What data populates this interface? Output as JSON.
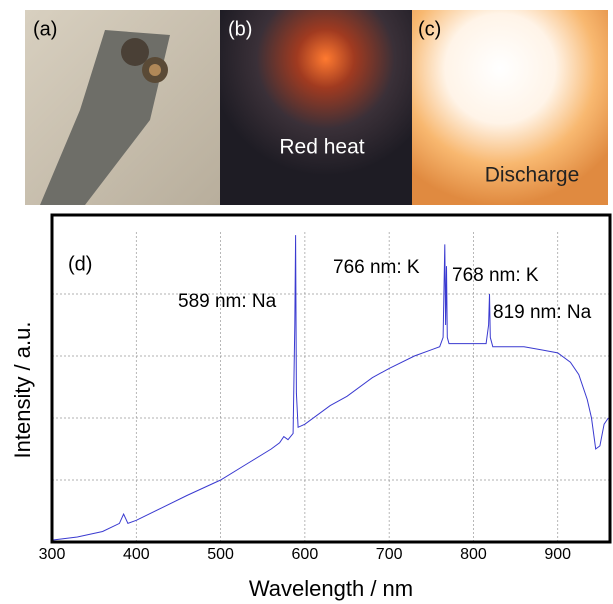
{
  "photos": [
    {
      "label": "(a)"
    },
    {
      "label": "(b)",
      "caption": "Red heat"
    },
    {
      "label": "(c)",
      "caption": "Discharge"
    }
  ],
  "chart_data": {
    "type": "line",
    "panel_label": "(d)",
    "xlabel": "Wavelength / nm",
    "ylabel": "Intensity / a.u.",
    "xlim": [
      300,
      962
    ],
    "xticks": [
      300,
      400,
      500,
      600,
      700,
      800,
      900
    ],
    "ylim": [
      0,
      5
    ],
    "yticks": [
      1,
      2,
      3,
      4
    ],
    "ytick_labels": false,
    "grid": true,
    "annotations": [
      {
        "text": "589 nm: Na",
        "x": 589
      },
      {
        "text": "766 nm: K",
        "x": 766
      },
      {
        "text": "768 nm: K",
        "x": 768
      },
      {
        "text": "819 nm: Na",
        "x": 819
      }
    ],
    "series": [
      {
        "color": "#3a3ad0",
        "x": [
          300,
          330,
          360,
          380,
          385,
          390,
          400,
          430,
          460,
          500,
          530,
          560,
          570,
          575,
          580,
          586,
          588,
          589,
          590,
          592,
          600,
          630,
          650,
          680,
          700,
          730,
          750,
          760,
          764,
          766,
          767,
          768,
          769,
          771,
          780,
          800,
          815,
          818,
          819,
          820,
          823,
          840,
          860,
          880,
          900,
          915,
          925,
          935,
          940,
          945,
          950,
          955,
          960
        ],
        "values": [
          0.03,
          0.08,
          0.17,
          0.3,
          0.45,
          0.3,
          0.35,
          0.55,
          0.75,
          1.0,
          1.25,
          1.5,
          1.6,
          1.7,
          1.65,
          1.75,
          3.5,
          4.95,
          2.4,
          1.85,
          1.9,
          2.2,
          2.35,
          2.65,
          2.8,
          3.0,
          3.1,
          3.15,
          3.3,
          4.8,
          3.5,
          4.45,
          3.3,
          3.2,
          3.2,
          3.2,
          3.2,
          3.5,
          4.0,
          3.3,
          3.15,
          3.15,
          3.15,
          3.1,
          3.05,
          2.9,
          2.7,
          2.3,
          2.0,
          1.5,
          1.55,
          1.9,
          2.0
        ]
      }
    ]
  }
}
